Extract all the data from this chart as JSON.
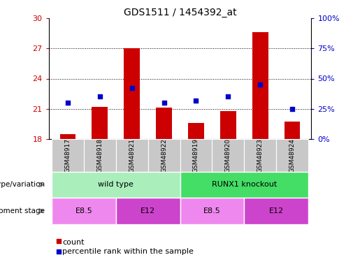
{
  "title": "GDS1511 / 1454392_at",
  "samples": [
    "GSM48917",
    "GSM48918",
    "GSM48921",
    "GSM48922",
    "GSM48919",
    "GSM48920",
    "GSM48923",
    "GSM48924"
  ],
  "count_values": [
    18.5,
    21.2,
    27.0,
    21.1,
    19.6,
    20.8,
    28.6,
    19.7
  ],
  "percentile_values": [
    30,
    35,
    42,
    30,
    32,
    35,
    45,
    25
  ],
  "ylim_left": [
    18,
    30
  ],
  "ylim_right": [
    0,
    100
  ],
  "yticks_left": [
    18,
    21,
    24,
    27,
    30
  ],
  "yticks_right": [
    0,
    25,
    50,
    75,
    100
  ],
  "bar_color": "#cc0000",
  "dot_color": "#0000cc",
  "bar_width": 0.5,
  "genotype_groups": [
    {
      "label": "wild type",
      "start": 0,
      "end": 4,
      "color": "#aaeebb"
    },
    {
      "label": "RUNX1 knockout",
      "start": 4,
      "end": 8,
      "color": "#44dd66"
    }
  ],
  "dev_stage_groups": [
    {
      "label": "E8.5",
      "start": 0,
      "end": 2,
      "color": "#ee88ee"
    },
    {
      "label": "E12",
      "start": 2,
      "end": 4,
      "color": "#cc44cc"
    },
    {
      "label": "E8.5",
      "start": 4,
      "end": 6,
      "color": "#ee88ee"
    },
    {
      "label": "E12",
      "start": 6,
      "end": 8,
      "color": "#cc44cc"
    }
  ],
  "legend_count_label": "count",
  "legend_percentile_label": "percentile rank within the sample",
  "genotype_label": "genotype/variation",
  "devstage_label": "development stage",
  "dotted_grid_color": "#000000",
  "axis_label_color_left": "#cc0000",
  "axis_label_color_right": "#0000cc",
  "bg_color": "#ffffff",
  "tick_label_bg": "#c8c8c8",
  "arrow_color": "#888888"
}
